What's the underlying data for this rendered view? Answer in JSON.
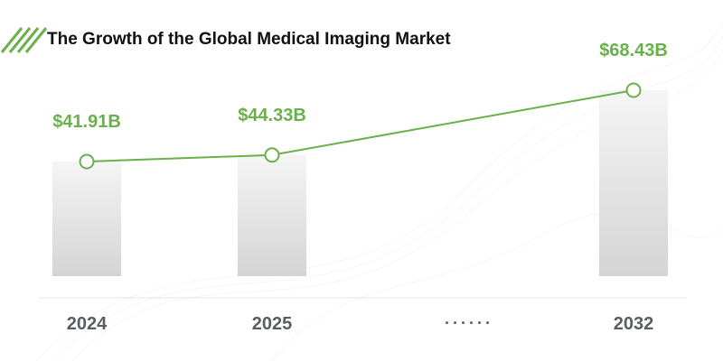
{
  "chart_data": {
    "type": "bar",
    "title": "The Growth of the Global Medical Imaging Market",
    "categories": [
      "2024",
      "2025",
      "2032"
    ],
    "values": [
      41.91,
      44.33,
      68.43
    ],
    "data_labels": [
      "$41.91B",
      "$44.33B",
      "$68.43B"
    ],
    "gap_label": "......",
    "overlay": "line-with-markers",
    "ylim": [
      0,
      80
    ],
    "grid": false,
    "legend": "none",
    "xlabel": "",
    "ylabel": ""
  },
  "colors": {
    "accent": "#6ab04c",
    "bar_top": "#f5f5f5",
    "bar_bottom": "#d4d4d4",
    "title_text": "#111111",
    "tick_text": "#5a5e63"
  },
  "icons": {
    "title_decoration": "green-diagonal-stripes-icon"
  }
}
